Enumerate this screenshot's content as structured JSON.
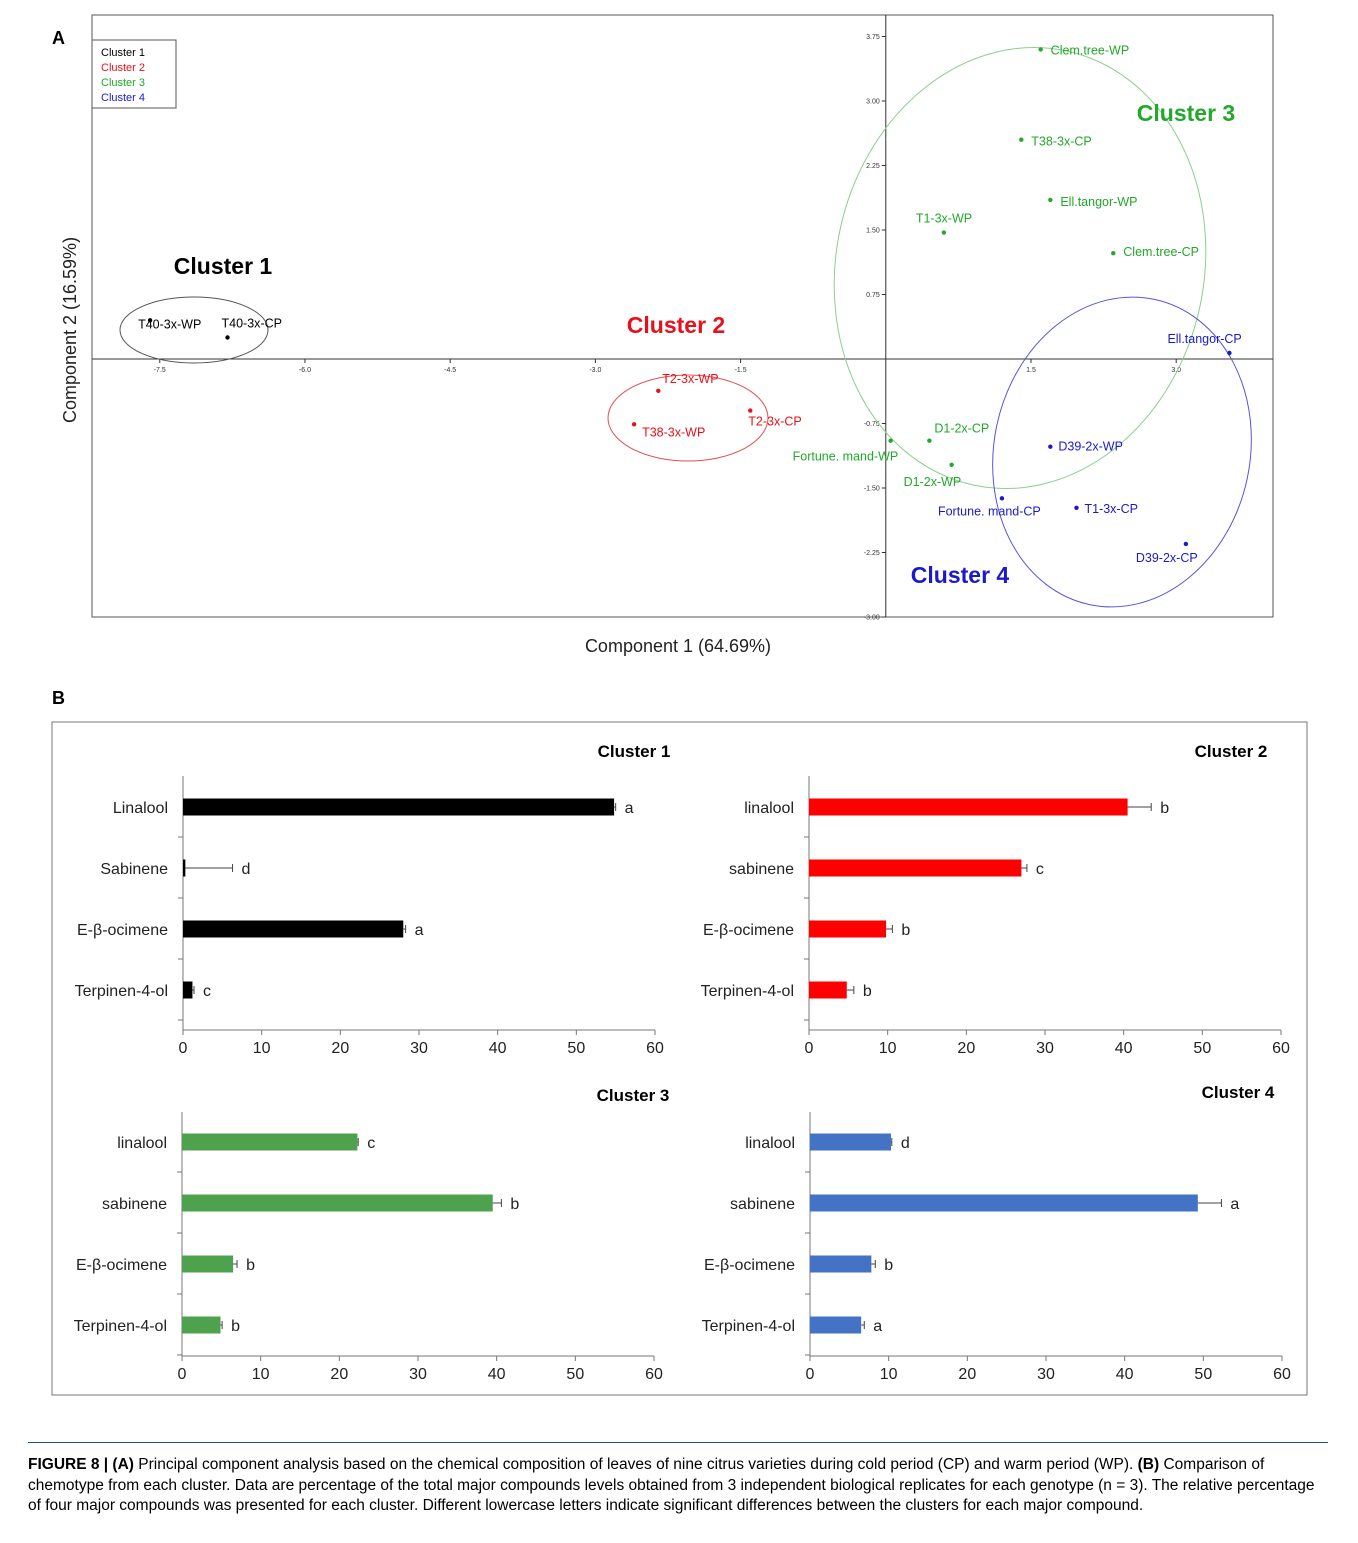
{
  "panel_a_letter": "A",
  "panel_b_letter": "B",
  "caption": {
    "lead": "FIGURE 8 | (A)",
    "text_a": "Principal component analysis based on the chemical composition of leaves of nine citrus varieties during cold period (CP) and warm period (WP).",
    "lead_b": "(B)",
    "text_b": "Comparison of chemotype from each cluster. Data are percentage of the total major compounds levels obtained from 3 independent biological replicates for each genotype (n = 3). The relative percentage of four major compounds was presented for each cluster. Different lowercase letters indicate significant differences between the clusters for each major compound."
  },
  "colors": {
    "cluster1": "#000000",
    "cluster2": "#e8101a",
    "cluster3": "#22a82a",
    "cluster4": "#1a1acc",
    "bar1": "#000000",
    "bar2": "#ff0000",
    "bar3": "#4ea24e",
    "bar4": "#4472c4"
  },
  "chart_data": [
    {
      "type": "scatter",
      "xlabel": "Component 1 (64.69%)",
      "ylabel": "Component 2 (16.59%)",
      "xlim": [
        -8.2,
        4.0
      ],
      "ylim": [
        -3.0,
        4.0
      ],
      "x_ticks": [
        "-7.5",
        "-6.0",
        "-4.5",
        "-3.0",
        "-1.5",
        "1.5",
        "3.0"
      ],
      "x_tick_values": [
        -7.5,
        -6.0,
        -4.5,
        -3.0,
        -1.5,
        1.5,
        3.0
      ],
      "y_ticks": [
        "3.75",
        "3.00",
        "2.25",
        "1.50",
        "0.75",
        "-0.75",
        "-1.50",
        "-2.25",
        "-3.00"
      ],
      "y_tick_values": [
        3.75,
        3.0,
        2.25,
        1.5,
        0.75,
        -0.75,
        -1.5,
        -2.25,
        -3.0
      ],
      "legend": [
        "Cluster 1",
        "Cluster 2",
        "Cluster 3",
        "Cluster 4"
      ],
      "legend_placement": "top-left",
      "cluster_titles": [
        "Cluster 1",
        "Cluster 2",
        "Cluster 3",
        "Cluster 4"
      ],
      "points": [
        {
          "label": "T40-3x-WP",
          "x": -7.6,
          "y": 0.45,
          "cluster": 1
        },
        {
          "label": "T40-3x-CP",
          "x": -6.8,
          "y": 0.25,
          "cluster": 1
        },
        {
          "label": "T2-3x-WP",
          "x": -2.35,
          "y": -0.37,
          "cluster": 2
        },
        {
          "label": "T38-3x-WP",
          "x": -2.6,
          "y": -0.76,
          "cluster": 2
        },
        {
          "label": "T2-3x-CP",
          "x": -1.4,
          "y": -0.6,
          "cluster": 2
        },
        {
          "label": "Clem.tree-WP",
          "x": 1.6,
          "y": 3.6,
          "cluster": 3
        },
        {
          "label": "T38-3x-CP",
          "x": 1.4,
          "y": 2.55,
          "cluster": 3
        },
        {
          "label": "Ell.tangor-WP",
          "x": 1.7,
          "y": 1.85,
          "cluster": 3
        },
        {
          "label": "T1-3x-WP",
          "x": 0.6,
          "y": 1.47,
          "cluster": 3
        },
        {
          "label": "Clem.tree-CP",
          "x": 2.35,
          "y": 1.23,
          "cluster": 3
        },
        {
          "label": "D1-2x-CP",
          "x": 0.45,
          "y": -0.95,
          "cluster": 3
        },
        {
          "label": "Fortune. mand-WP",
          "x": 0.05,
          "y": -0.95,
          "cluster": 3
        },
        {
          "label": "D1-2x-WP",
          "x": 0.68,
          "y": -1.23,
          "cluster": 3
        },
        {
          "label": "Ell.tangor-CP",
          "x": 3.55,
          "y": 0.07,
          "cluster": 4
        },
        {
          "label": "D39-2x-WP",
          "x": 1.7,
          "y": -1.02,
          "cluster": 4
        },
        {
          "label": "Fortune. mand-CP",
          "x": 1.2,
          "y": -1.62,
          "cluster": 4
        },
        {
          "label": "T1-3x-CP",
          "x": 1.97,
          "y": -1.73,
          "cluster": 4
        },
        {
          "label": "D39-2x-CP",
          "x": 3.1,
          "y": -2.15,
          "cluster": 4
        }
      ]
    },
    {
      "type": "bar",
      "orientation": "horizontal",
      "title": "Cluster 1",
      "categories": [
        "Linalool",
        "Sabinene",
        "E-β-ocimene",
        "Terpinen-4-ol"
      ],
      "values": [
        54.8,
        0.3,
        28.0,
        1.2
      ],
      "errors": [
        0.2,
        6.0,
        0.3,
        0.2
      ],
      "letters": [
        "a",
        "d",
        "a",
        "c"
      ],
      "xlim": [
        0,
        60
      ],
      "x_ticks": [
        "0",
        "10",
        "20",
        "30",
        "40",
        "50",
        "60"
      ]
    },
    {
      "type": "bar",
      "orientation": "horizontal",
      "title": "Cluster 2",
      "categories": [
        "linalool",
        "sabinene",
        "E-β-ocimene",
        "Terpinen-4-ol"
      ],
      "values": [
        40.5,
        27.0,
        9.8,
        4.8
      ],
      "errors": [
        3.0,
        0.7,
        0.8,
        0.9
      ],
      "letters": [
        "b",
        "c",
        "b",
        "b"
      ],
      "xlim": [
        0,
        60
      ],
      "x_ticks": [
        "0",
        "10",
        "20",
        "30",
        "40",
        "50",
        "60"
      ]
    },
    {
      "type": "bar",
      "orientation": "horizontal",
      "title": "Cluster 3",
      "categories": [
        "linalool",
        "sabinene",
        "E-β-ocimene",
        "Terpinen-4-ol"
      ],
      "values": [
        22.3,
        39.5,
        6.5,
        4.9
      ],
      "errors": [
        0.1,
        1.1,
        0.5,
        0.2
      ],
      "letters": [
        "c",
        "b",
        "b",
        "b"
      ],
      "xlim": [
        0,
        60
      ],
      "x_ticks": [
        "0",
        "10",
        "20",
        "30",
        "40",
        "50",
        "60"
      ]
    },
    {
      "type": "bar",
      "orientation": "horizontal",
      "title": "Cluster 4",
      "categories": [
        "linalool",
        "sabinene",
        "E-β-ocimene",
        "Terpinen-4-ol"
      ],
      "values": [
        10.3,
        49.3,
        7.8,
        6.5
      ],
      "errors": [
        0.1,
        3.0,
        0.5,
        0.4
      ],
      "letters": [
        "d",
        "a",
        "b",
        "a"
      ],
      "xlim": [
        0,
        60
      ],
      "x_ticks": [
        "0",
        "10",
        "20",
        "30",
        "40",
        "50",
        "60"
      ]
    }
  ]
}
